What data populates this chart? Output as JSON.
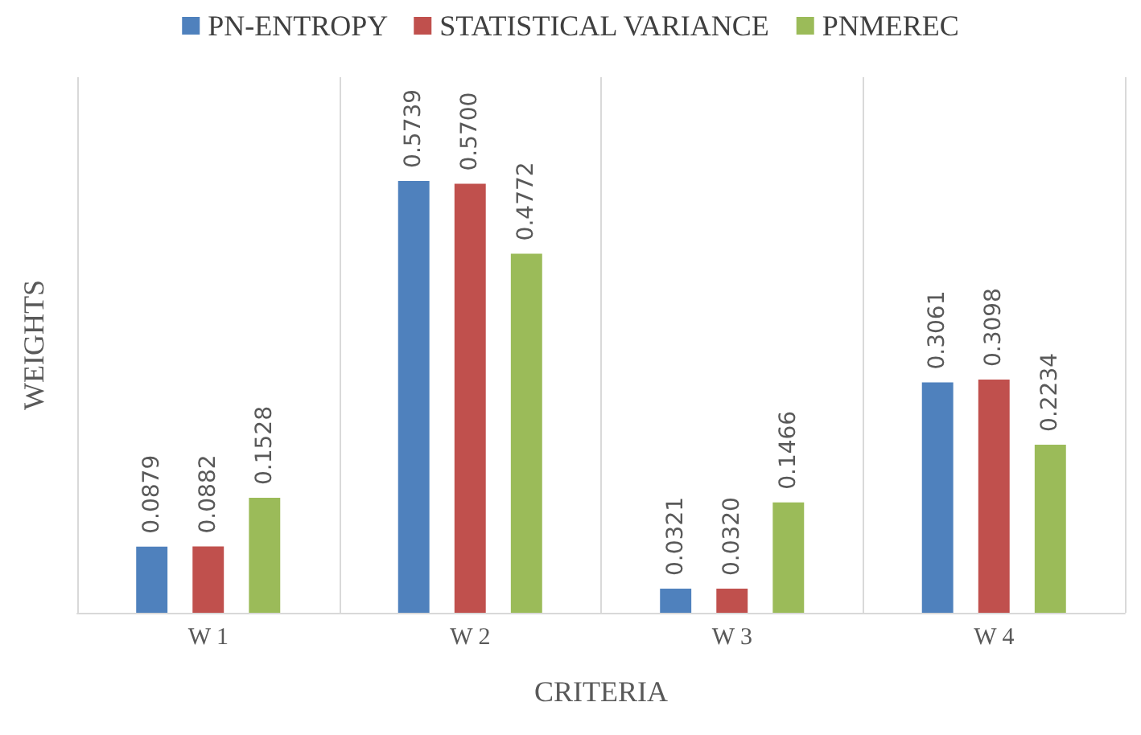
{
  "chart_data": {
    "type": "bar",
    "xlabel": "CRITERIA",
    "ylabel": "WEIGHTS",
    "categories": [
      "W 1",
      "W 2",
      "W 3",
      "W 4"
    ],
    "series": [
      {
        "name": "PN-ENTROPY",
        "color": "#4f81bd",
        "values": [
          0.0879,
          0.5739,
          0.0321,
          0.3061
        ],
        "value_labels": [
          "0.0879",
          "0.5739",
          "0.0321",
          "0.3061"
        ]
      },
      {
        "name": "STATISTICAL VARIANCE",
        "color": "#c0504d",
        "values": [
          0.0882,
          0.57,
          0.032,
          0.3098
        ],
        "value_labels": [
          "0.0882",
          "0.5700",
          "0.0320",
          "0.3098"
        ]
      },
      {
        "name": "PNMEREC",
        "color": "#9bbb59",
        "values": [
          0.1528,
          0.4772,
          0.1466,
          0.2234
        ],
        "value_labels": [
          "0.1528",
          "0.4772",
          "0.1466",
          "0.2234"
        ]
      }
    ],
    "legend": "top",
    "grid": "x"
  }
}
